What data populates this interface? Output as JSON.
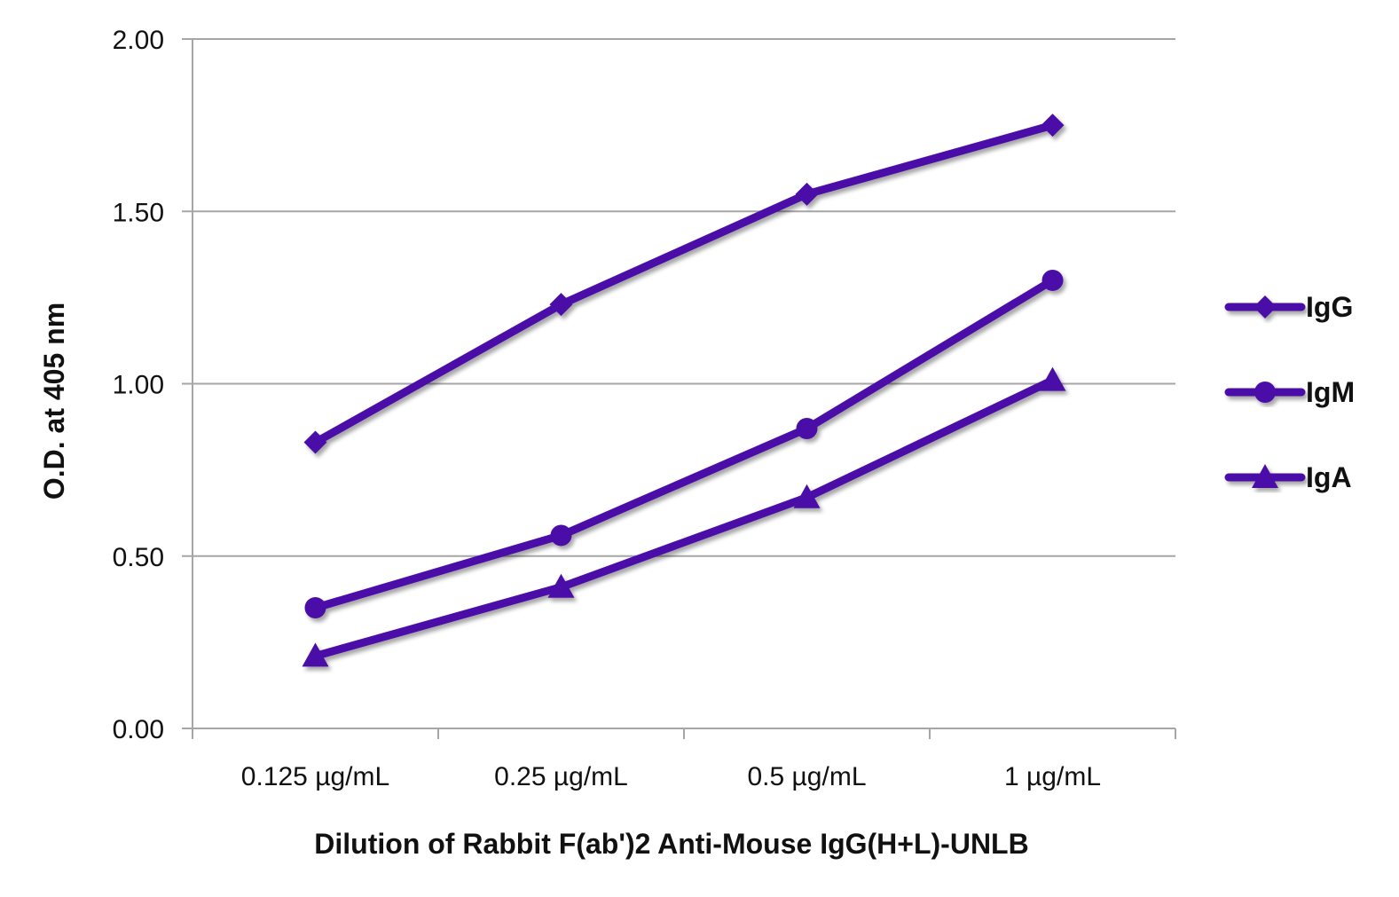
{
  "chart_data": {
    "type": "line",
    "categories": [
      "0.125 µg/mL",
      "0.25 µg/mL",
      "0.5 µg/mL",
      "1 µg/mL"
    ],
    "series": [
      {
        "name": "IgG",
        "marker": "diamond",
        "values": [
          0.83,
          1.23,
          1.55,
          1.75
        ]
      },
      {
        "name": "IgM",
        "marker": "circle",
        "values": [
          0.35,
          0.56,
          0.87,
          1.3
        ]
      },
      {
        "name": "IgA",
        "marker": "triangle",
        "values": [
          0.21,
          0.41,
          0.67,
          1.01
        ]
      }
    ],
    "xlabel": "Dilution of Rabbit F(ab')2 Anti-Mouse IgG(H+L)-UNLB",
    "ylabel": "O.D. at 405 nm",
    "ylim": [
      0,
      2
    ],
    "yticks": [
      "0.00",
      "0.50",
      "1.00",
      "1.50",
      "2.00"
    ],
    "grid": true,
    "legend_position": "right",
    "line_color": "#4b0fa8"
  }
}
